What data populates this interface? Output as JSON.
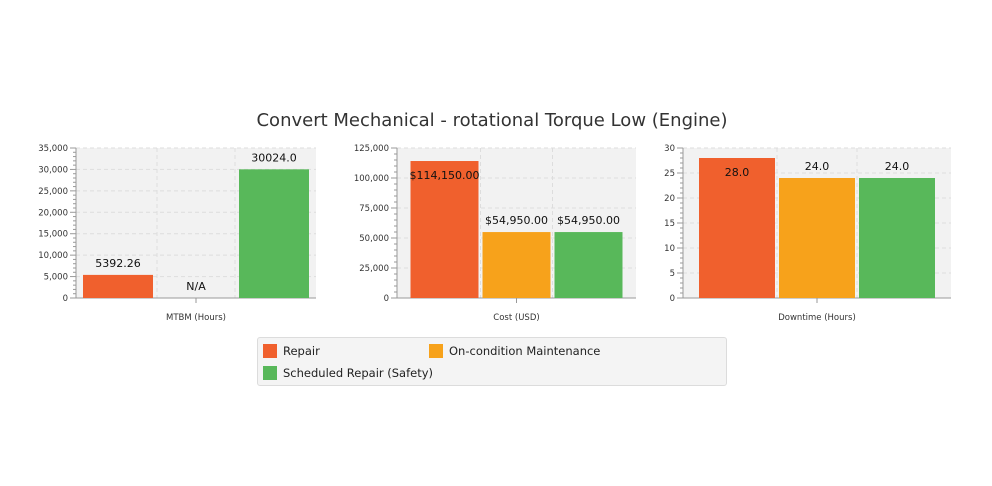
{
  "colors": {
    "repair": "#f0602d",
    "on_condition": "#f7a21b",
    "scheduled": "#58b85a",
    "plot_bg": "#f2f2f2",
    "grid": "#dddddd",
    "axis": "#999999",
    "text": "#333333"
  },
  "chart_data": {
    "type": "bar",
    "title": "Convert Mechanical - rotational Torque Low (Engine)",
    "legend_position": "bottom",
    "series_names": [
      "Repair",
      "On-condition Maintenance",
      "Scheduled Repair (Safety)"
    ],
    "charts": [
      {
        "id": "mtbm",
        "xlabel": "MTBM (Hours)",
        "ylim": [
          0,
          35000
        ],
        "ticks": [
          0,
          5000,
          10000,
          15000,
          20000,
          25000,
          30000,
          35000
        ],
        "tick_labels": [
          "0",
          "5,000",
          "10,000",
          "15,000",
          "20,000",
          "25,000",
          "30,000",
          "35,000"
        ],
        "values": [
          5392.26,
          null,
          30024.0
        ],
        "data_labels": [
          "5392.26",
          "N/A",
          "30024.0"
        ],
        "label_inside": [
          false,
          false,
          false
        ]
      },
      {
        "id": "cost",
        "xlabel": "Cost (USD)",
        "ylim": [
          0,
          125000
        ],
        "ticks": [
          0,
          25000,
          50000,
          75000,
          100000,
          125000
        ],
        "tick_labels": [
          "0",
          "25,000",
          "50,000",
          "75,000",
          "100,000",
          "125,000"
        ],
        "values": [
          114150.0,
          54950.0,
          54950.0
        ],
        "data_labels": [
          "$114,150.00",
          "$54,950.00",
          "$54,950.00"
        ],
        "label_inside": [
          true,
          false,
          false
        ]
      },
      {
        "id": "downtime",
        "xlabel": "Downtime (Hours)",
        "ylim": [
          0,
          30
        ],
        "ticks": [
          0,
          5,
          10,
          15,
          20,
          25,
          30
        ],
        "tick_labels": [
          "0",
          "5",
          "10",
          "15",
          "20",
          "25",
          "30"
        ],
        "values": [
          28.0,
          24.0,
          24.0
        ],
        "data_labels": [
          "28.0",
          "24.0",
          "24.0"
        ],
        "label_inside": [
          true,
          false,
          false
        ]
      }
    ]
  },
  "legend": {
    "items": [
      {
        "label": "Repair",
        "color": "#f0602d"
      },
      {
        "label": "On-condition Maintenance",
        "color": "#f7a21b"
      },
      {
        "label": "Scheduled Repair (Safety)",
        "color": "#58b85a"
      }
    ]
  }
}
